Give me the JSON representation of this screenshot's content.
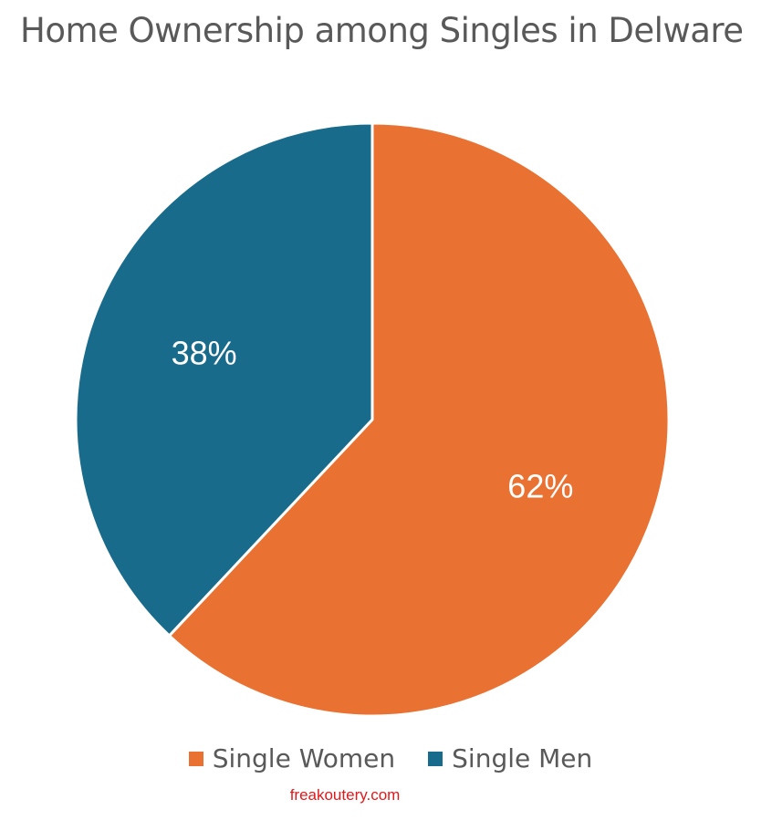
{
  "chart_data": {
    "type": "pie",
    "title": "Home Ownership among Singles in Delware",
    "categories": [
      "Single Women",
      "Single Men"
    ],
    "values": [
      62,
      38
    ],
    "data_labels": [
      "62%",
      "38%"
    ],
    "colors": [
      "#E97132",
      "#196B8C"
    ],
    "legend_position": "bottom",
    "start_angle_deg": 0,
    "direction": "clockwise"
  },
  "watermark": "freakoutery.com"
}
